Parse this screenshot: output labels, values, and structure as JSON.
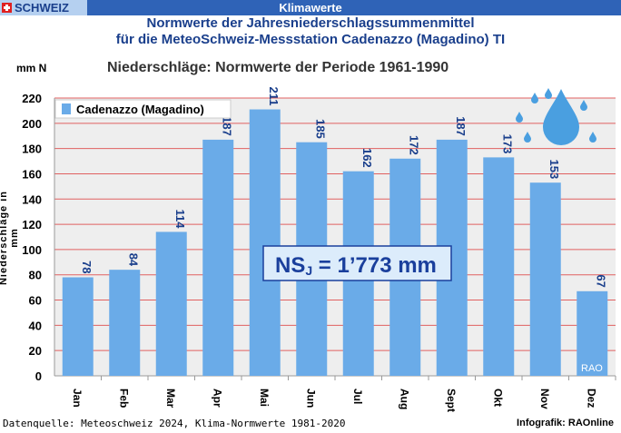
{
  "header": {
    "brand": "SCHWEIZ",
    "section": "Klimawerte",
    "title_line1": "Normwerte der Jahresniederschlagssummenmittel",
    "title_line2": "für die MeteoSchweiz-Messstation Cadenazzo (Magadino) TI"
  },
  "chart_data": {
    "type": "bar",
    "title": "Niederschläge: Normwerte der Periode  1961-1990",
    "unit_label": "mm N",
    "ylabel": "Niederschläge in mm",
    "categories": [
      "Jan",
      "Feb",
      "Mar",
      "Apr",
      "Mai",
      "Jun",
      "Jul",
      "Aug",
      "Sept",
      "Okt",
      "Nov",
      "Dez"
    ],
    "series": [
      {
        "name": "Cadenazzo (Magadino)",
        "values": [
          78,
          84,
          114,
          187,
          211,
          185,
          162,
          172,
          187,
          173,
          153,
          67
        ]
      }
    ],
    "ylim": [
      0,
      220
    ],
    "yticks": [
      0,
      20,
      40,
      60,
      80,
      100,
      120,
      140,
      160,
      180,
      200,
      220
    ],
    "grid": true,
    "legend_position": "top-left",
    "annotation": {
      "prefix": "NS",
      "subscript": "J",
      "text": " = 1’773  mm"
    },
    "watermark": "RAO",
    "colors": {
      "bar": "#6aabe8",
      "grid": "#e06060",
      "plot_bg": "#eeeeee",
      "annotation_text": "#1a3f9c",
      "annotation_bg": "#dcecfb"
    }
  },
  "footer": {
    "source": "Datenquelle: Meteoschweiz 2024, Klima-Normwerte 1981-2020",
    "credit": "Infografik: RAOnline"
  }
}
